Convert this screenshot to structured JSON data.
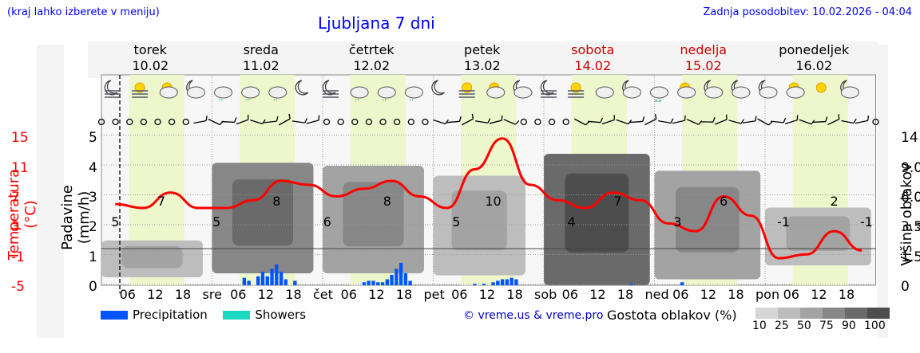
{
  "header": {
    "hint": "(kraj lahko izberete v meniju)",
    "title": "Ljubljana 7 dni",
    "updated": "Zadnja posodobitev: 10.02.2026 - 04:04"
  },
  "days": [
    {
      "name": "torek",
      "date": "10.02",
      "color": "#000000"
    },
    {
      "name": "sreda",
      "date": "11.02",
      "color": "#000000"
    },
    {
      "name": "četrtek",
      "date": "12.02",
      "color": "#000000"
    },
    {
      "name": "petek",
      "date": "13.02",
      "color": "#000000"
    },
    {
      "name": "sobota",
      "date": "14.02",
      "color": "#cc0000"
    },
    {
      "name": "nedelja",
      "date": "15.02",
      "color": "#cc0000"
    },
    {
      "name": "ponedeljek",
      "date": "16.02",
      "color": "#000000"
    }
  ],
  "x_ticks": [
    "06",
    "12",
    "18",
    "sre",
    "06",
    "12",
    "18",
    "čet",
    "06",
    "12",
    "18",
    "pet",
    "06",
    "12",
    "18",
    "sob",
    "06",
    "12",
    "18",
    "ned",
    "06",
    "12",
    "18",
    "pon",
    "06",
    "12",
    "18"
  ],
  "axes": {
    "temperature": {
      "label": "Temperatura (°C)",
      "ticks": [
        "15",
        "11",
        "7",
        "3",
        "-1",
        "-5"
      ]
    },
    "precipitation": {
      "label": "Padavine (mm/h)",
      "ticks": [
        "5",
        "4",
        "3",
        "2",
        "1",
        "0"
      ]
    },
    "cloud_height": {
      "label": "Višina oblakov (km)",
      "ticks": [
        "14",
        "9.0",
        "6.0",
        "3.5",
        "1.5",
        "0"
      ]
    }
  },
  "legend": {
    "precipitation": {
      "label": "Precipitation",
      "color": "#0055ff"
    },
    "showers": {
      "label": "Showers",
      "color": "#1ad7c0"
    }
  },
  "copyright": "© vreme.us & vreme.pro",
  "cloud_scale": {
    "title": "Gostota oblakov (%)",
    "levels": [
      "10",
      "25",
      "50",
      "75",
      "90",
      "100"
    ],
    "colors": [
      "#d6d6d6",
      "#bdbdbd",
      "#a3a3a3",
      "#878787",
      "#6a6a6a",
      "#4d4d4d"
    ]
  },
  "weather_icons": [
    "moon-fog-icon",
    "sun-fog-icon",
    "sun-cloud-icon",
    "cloud-moon-icon",
    "cloud-rain-icon",
    "cloud-rain-icon",
    "cloud-rain-icon",
    "moon-icon",
    "moon-fog-icon",
    "cloud-rain-icon",
    "cloud-rain-icon",
    "cloud-rain-icon",
    "moon-icon",
    "sun-fog-icon",
    "sun-cloud-icon",
    "moon-cloud-icon",
    "moon-fog-icon",
    "sun-fog-icon",
    "cloud-icon",
    "moon-cloud-icon",
    "cloud-snow-icon",
    "sun-cloud-icon",
    "cloud-moon-icon",
    "cloud-moon-icon",
    "moon-cloud-icon",
    "cloud-sun-icon",
    "sun-icon",
    "moon-cloud-icon"
  ],
  "chart_data": {
    "type": "line",
    "x": [
      "10.02 03",
      "10.02 09",
      "10.02 15",
      "10.02 21",
      "11.02 03",
      "11.02 09",
      "11.02 15",
      "11.02 21",
      "12.02 03",
      "12.02 09",
      "12.02 15",
      "12.02 21",
      "13.02 03",
      "13.02 09",
      "13.02 15",
      "13.02 21",
      "14.02 03",
      "14.02 09",
      "14.02 15",
      "14.02 21",
      "15.02 03",
      "15.02 09",
      "15.02 15",
      "15.02 21",
      "16.02 03",
      "16.02 09",
      "16.02 15",
      "16.02 21"
    ],
    "series": [
      {
        "values": [
          5.5,
          5.0,
          7.0,
          5.0,
          5.0,
          6.0,
          8.5,
          8.0,
          6.5,
          7.5,
          8.5,
          6.5,
          5.0,
          10.0,
          14.0,
          8.0,
          6.0,
          5.0,
          7.0,
          6.0,
          3.0,
          2.0,
          6.5,
          4.0,
          -1.5,
          -1.0,
          2.0,
          -0.5
        ],
        "color": "#ff0000"
      }
    ],
    "labels": [
      {
        "time": "10.02 03",
        "text": "5"
      },
      {
        "time": "10.02 13",
        "text": "7"
      },
      {
        "time": "11.02 01",
        "text": "5"
      },
      {
        "time": "11.02 14",
        "text": "8"
      },
      {
        "time": "12.02 01",
        "text": "6"
      },
      {
        "time": "12.02 14",
        "text": "8"
      },
      {
        "time": "13.02 05",
        "text": "5"
      },
      {
        "time": "13.02 13",
        "text": "10"
      },
      {
        "time": "14.02 06",
        "text": "4"
      },
      {
        "time": "14.02 16",
        "text": "7"
      },
      {
        "time": "15.02 05",
        "text": "3"
      },
      {
        "time": "15.02 15",
        "text": "6"
      },
      {
        "time": "16.02 04",
        "text": "-1"
      },
      {
        "time": "16.02 15",
        "text": "2"
      },
      {
        "time": "16.02 22",
        "text": "-1"
      }
    ],
    "precipitation": {
      "times": [
        "11.02 07",
        "11.02 08",
        "11.02 10",
        "11.02 11",
        "11.02 12",
        "11.02 13",
        "11.02 14",
        "11.02 15",
        "11.02 16",
        "11.02 18",
        "12.02 09",
        "12.02 10",
        "12.02 11",
        "12.02 12",
        "12.02 13",
        "12.02 14",
        "12.02 15",
        "12.02 16",
        "12.02 17",
        "12.02 18",
        "12.02 19",
        "13.02 09",
        "13.02 11",
        "13.02 13",
        "13.02 14",
        "13.02 15",
        "13.02 16",
        "13.02 17",
        "13.02 18",
        "14.02 19",
        "15.02 06"
      ],
      "values": [
        0.25,
        0.15,
        0.3,
        0.45,
        0.3,
        0.55,
        0.7,
        0.45,
        0.2,
        0.15,
        0.1,
        0.15,
        0.15,
        0.1,
        0.1,
        0.2,
        0.35,
        0.55,
        0.75,
        0.4,
        0.15,
        0.05,
        0.05,
        0.1,
        0.15,
        0.2,
        0.2,
        0.25,
        0.2,
        0.05,
        0.1
      ],
      "color": "#0055ff"
    },
    "ylim_precipitation": [
      0,
      5
    ],
    "ylim_cloud_km": [
      0,
      14
    ],
    "cloud_layers": [
      {
        "from": "10.02 00",
        "to": "10.02 22",
        "base_km": 0.4,
        "top_km": 2.5,
        "density": "50"
      },
      {
        "from": "11.02 00",
        "to": "11.02 22",
        "base_km": 0.6,
        "top_km": 9.5,
        "density": "90"
      },
      {
        "from": "12.02 00",
        "to": "12.02 22",
        "base_km": 0.6,
        "top_km": 9.0,
        "density": "75"
      },
      {
        "from": "13.02 00",
        "to": "13.02 20",
        "base_km": 0.5,
        "top_km": 8.0,
        "density": "50"
      },
      {
        "from": "14.02 00",
        "to": "14.02 23",
        "base_km": 0.0,
        "top_km": 11.0,
        "density": "100"
      },
      {
        "from": "15.02 00",
        "to": "15.02 23",
        "base_km": 0.3,
        "top_km": 8.5,
        "density": "75"
      },
      {
        "from": "16.02 00",
        "to": "16.02 23",
        "base_km": 1.0,
        "top_km": 5.0,
        "density": "50"
      }
    ]
  }
}
